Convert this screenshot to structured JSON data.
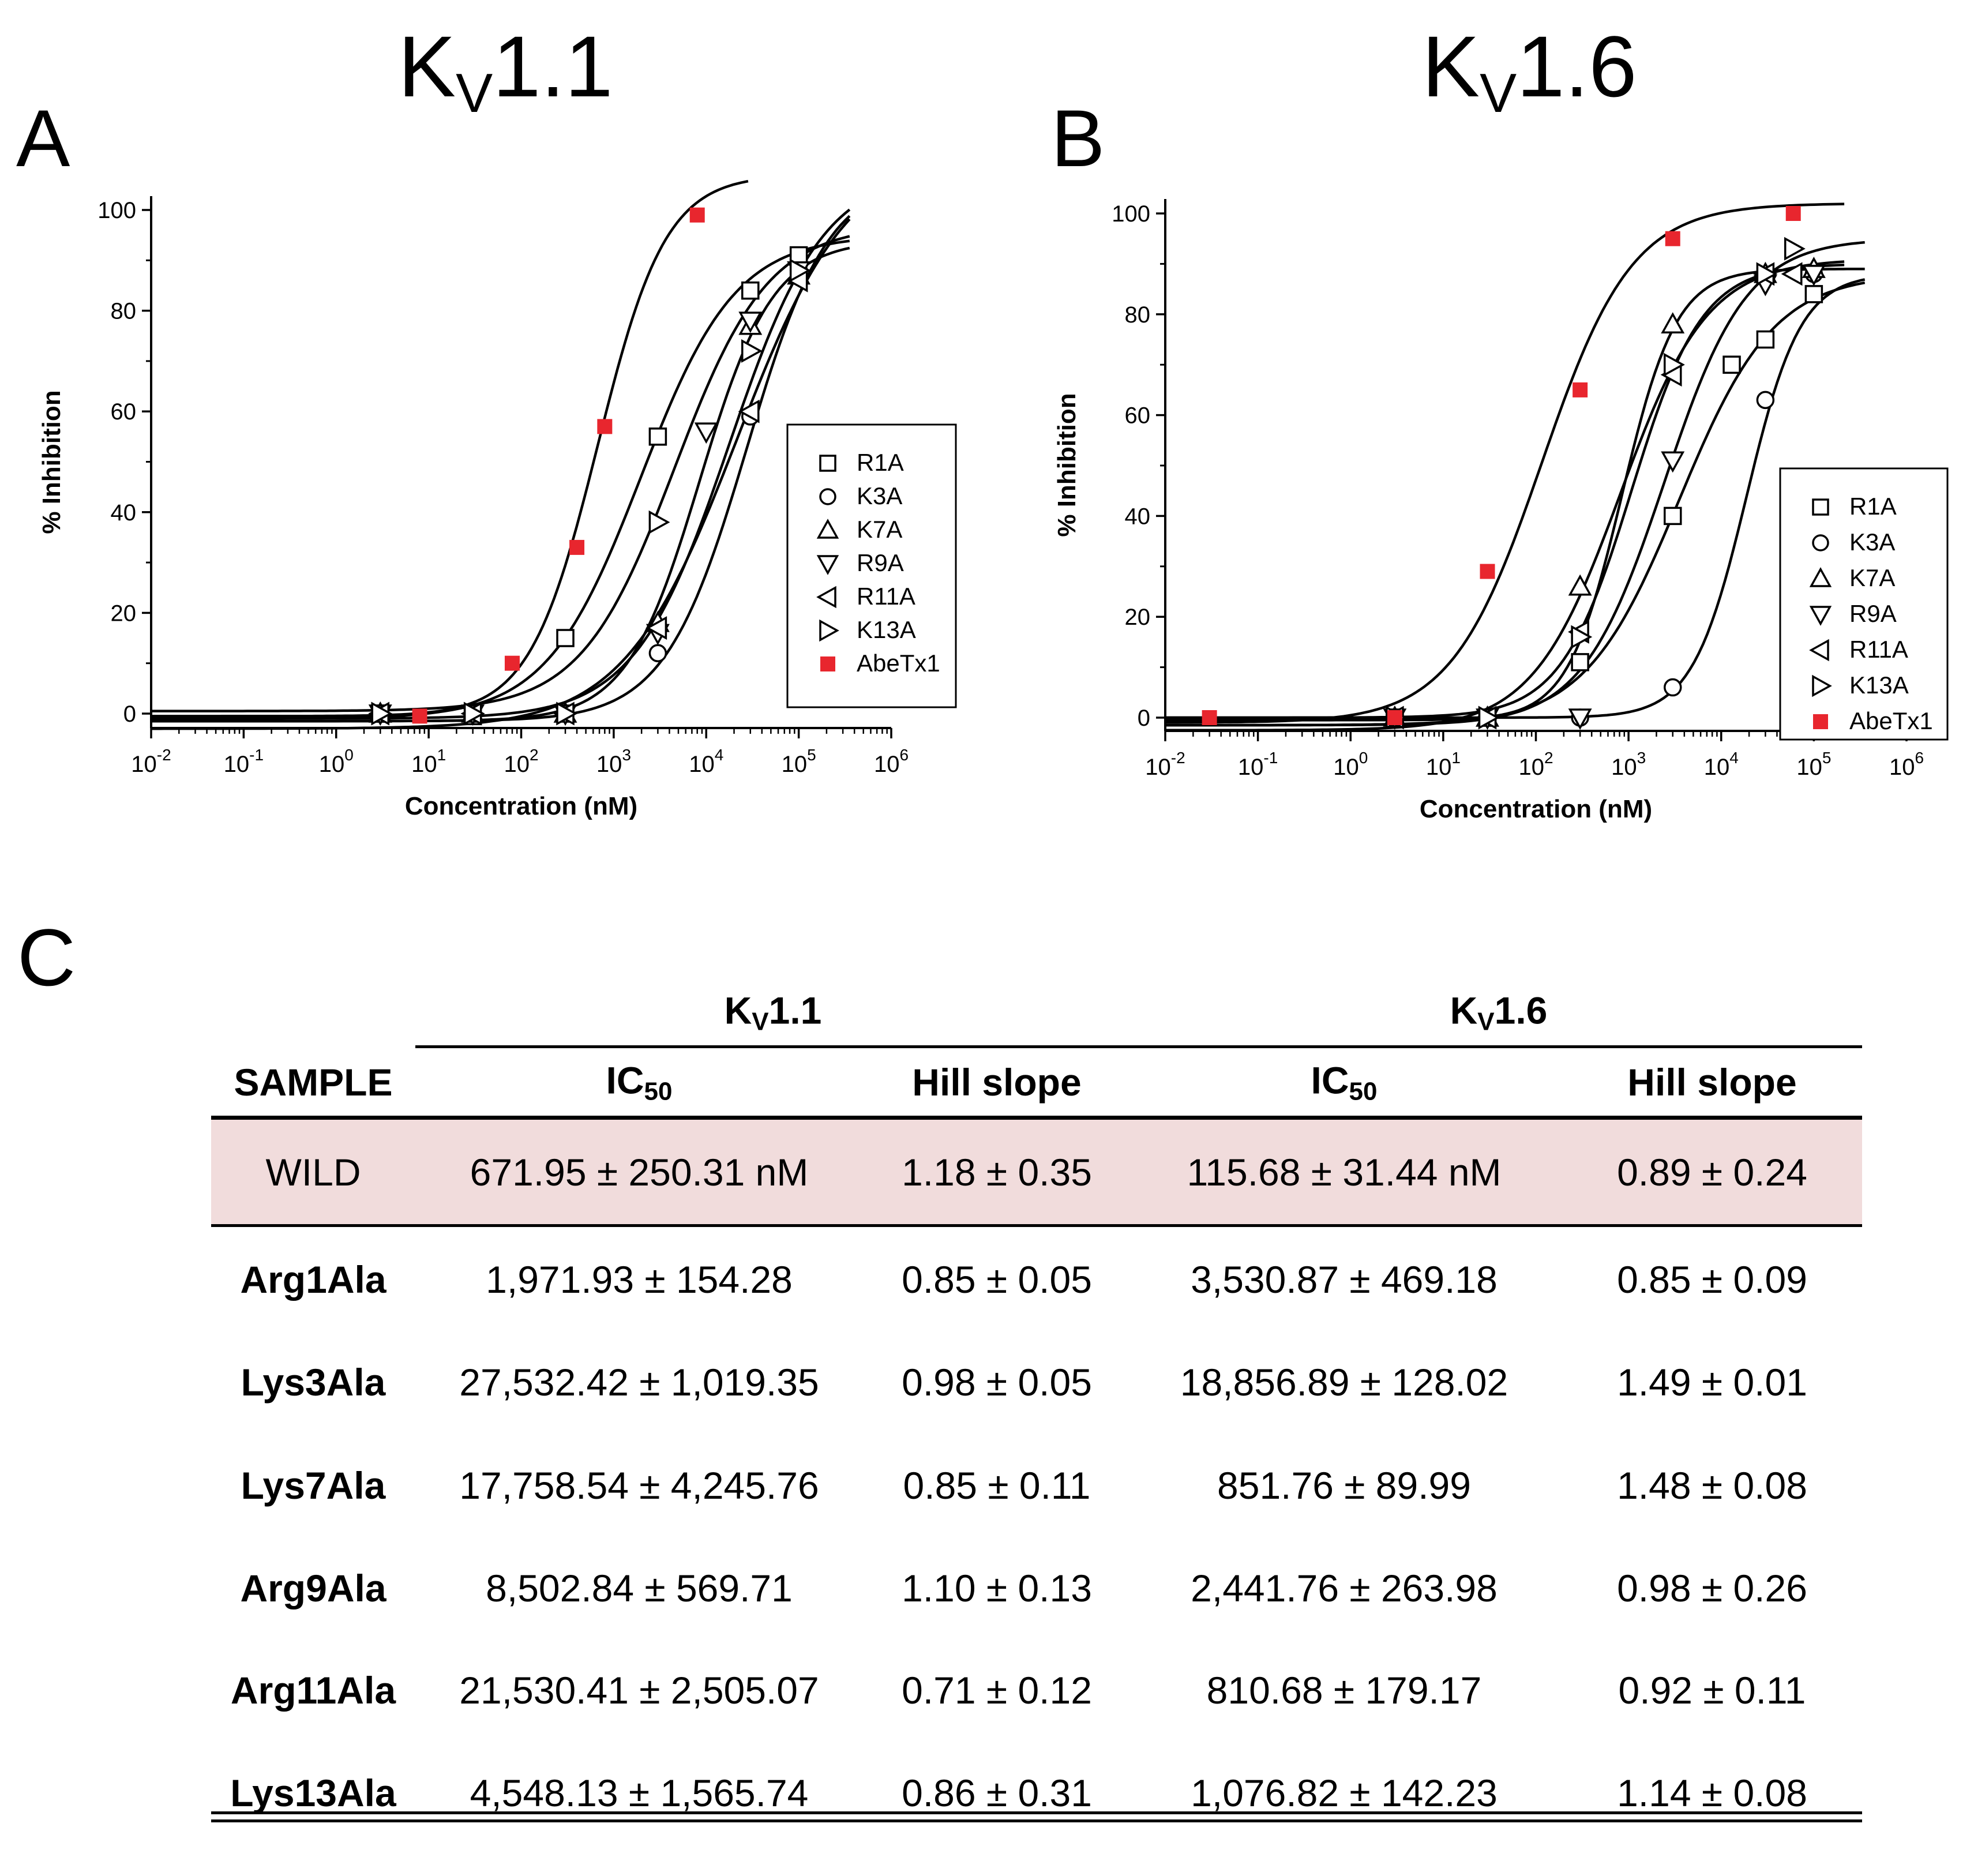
{
  "panel_a": {
    "letter": "A",
    "title_main": "K",
    "title_sub": "V",
    "title_tail": "1.1"
  },
  "panel_b": {
    "letter": "B",
    "title_main": "K",
    "title_sub": "V",
    "title_tail": "1.6"
  },
  "panel_c": {
    "letter": "C"
  },
  "colors": {
    "red": "#e8262e",
    "wild_band": "#f1dcdc",
    "line": "#000000"
  },
  "chart_data": [
    {
      "type": "scatter",
      "title": "Kv1.1",
      "xlabel": "Concentration (nM)",
      "ylabel": "% Inhibition",
      "xscale": "log",
      "xlim": [
        0.01,
        1000000
      ],
      "ylim": [
        -5,
        105
      ],
      "x_tick_labels": [
        "10-2",
        "10-1",
        "100",
        "101",
        "102",
        "103",
        "104",
        "105",
        "106"
      ],
      "y_ticks": [
        0,
        20,
        40,
        60,
        80,
        100
      ],
      "legend": {
        "placement": "right",
        "entries": [
          "R1A",
          "K3A",
          "K7A",
          "R9A",
          "R11A",
          "K13A",
          "AbeTx1"
        ]
      },
      "series": [
        {
          "name": "R1A",
          "marker": "square",
          "x": [
            3,
            30,
            300,
            3000,
            30000,
            100000
          ],
          "y": [
            0,
            -0.5,
            15,
            55,
            84,
            91
          ],
          "ic50": 1971.93,
          "hill": 0.85,
          "top": 95,
          "bottom": -1
        },
        {
          "name": "K3A",
          "marker": "circle",
          "x": [
            3,
            30,
            300,
            3000,
            30000,
            100000
          ],
          "y": [
            0,
            0,
            0,
            12,
            59,
            88
          ],
          "ic50": 27532.42,
          "hill": 0.98,
          "top": 107,
          "bottom": -1.5
        },
        {
          "name": "K7A",
          "marker": "triangle-up",
          "x": [
            3,
            30,
            300,
            3000,
            30000,
            100000
          ],
          "y": [
            0,
            0,
            0,
            18,
            77,
            87
          ],
          "ic50": 17758.54,
          "hill": 0.85,
          "top": 108,
          "bottom": -1
        },
        {
          "name": "R9A",
          "marker": "triangle-down",
          "x": [
            3,
            30,
            300,
            3000,
            10000,
            30000,
            100000
          ],
          "y": [
            0,
            0,
            0,
            16,
            56,
            78,
            88
          ],
          "ic50": 8502.84,
          "hill": 1.1,
          "top": 94,
          "bottom": -1.5
        },
        {
          "name": "R11A",
          "marker": "triangle-left",
          "x": [
            3,
            30,
            300,
            3000,
            30000,
            100000
          ],
          "y": [
            0,
            0,
            0,
            17,
            60,
            86
          ],
          "ic50": 21530.41,
          "hill": 0.71,
          "top": 112,
          "bottom": -3
        },
        {
          "name": "K13A",
          "marker": "triangle-right",
          "x": [
            3,
            30,
            300,
            3000,
            30000,
            100000
          ],
          "y": [
            0,
            0,
            0,
            38,
            72,
            88
          ],
          "ic50": 4548.13,
          "hill": 0.86,
          "top": 97,
          "bottom": 0.5
        },
        {
          "name": "AbeTx1",
          "marker": "filled-square",
          "x": [
            8,
            80,
            400,
            800,
            8000
          ],
          "y": [
            -0.5,
            10,
            33,
            57,
            99
          ],
          "ic50": 671.95,
          "hill": 1.18,
          "top": 107,
          "bottom": -0.5
        }
      ]
    },
    {
      "type": "scatter",
      "title": "Kv1.6",
      "xlabel": "Concentration (nM)",
      "ylabel": "% Inhibition",
      "xscale": "log",
      "xlim": [
        0.01,
        1000000
      ],
      "ylim": [
        -5,
        105
      ],
      "x_tick_labels": [
        "10-2",
        "10-1",
        "100",
        "101",
        "102",
        "103",
        "104",
        "105",
        "106"
      ],
      "y_ticks": [
        0,
        20,
        40,
        60,
        80,
        100
      ],
      "legend": {
        "placement": "right",
        "entries": [
          "R1A",
          "K3A",
          "K7A",
          "R9A",
          "R11A",
          "K13A",
          "AbeTx1"
        ]
      },
      "series": [
        {
          "name": "R1A",
          "marker": "square",
          "x": [
            3,
            30,
            300,
            3000,
            13000,
            30000,
            100000
          ],
          "y": [
            0,
            0,
            11,
            40,
            70,
            75,
            84
          ],
          "ic50": 3530.87,
          "hill": 0.85,
          "top": 88,
          "bottom": -1.5
        },
        {
          "name": "K3A",
          "marker": "circle",
          "x": [
            3,
            30,
            300,
            3000,
            30000,
            100000
          ],
          "y": [
            0,
            0,
            0,
            6,
            63,
            88
          ],
          "ic50": 18856.89,
          "hill": 1.49,
          "top": 88,
          "bottom": 0
        },
        {
          "name": "K7A",
          "marker": "triangle-up",
          "x": [
            3,
            30,
            300,
            3000,
            30000,
            100000
          ],
          "y": [
            0,
            0,
            26,
            78,
            88,
            89
          ],
          "ic50": 851.76,
          "hill": 1.48,
          "top": 89,
          "bottom": -0.5
        },
        {
          "name": "R9A",
          "marker": "triangle-down",
          "x": [
            3,
            30,
            300,
            3000,
            30000,
            100000
          ],
          "y": [
            0,
            0,
            0,
            51,
            86,
            88
          ],
          "ic50": 2441.76,
          "hill": 0.98,
          "top": 95,
          "bottom": -1.5
        },
        {
          "name": "R11A",
          "marker": "triangle-left",
          "x": [
            3,
            30,
            300,
            3000,
            30000,
            60000
          ],
          "y": [
            0,
            0,
            17,
            68,
            88,
            88
          ],
          "ic50": 810.68,
          "hill": 0.92,
          "top": 91,
          "bottom": -2.5
        },
        {
          "name": "K13A",
          "marker": "triangle-right",
          "x": [
            3,
            30,
            300,
            3000,
            30000,
            60000
          ],
          "y": [
            0,
            0,
            16,
            70,
            88,
            93
          ],
          "ic50": 1076.82,
          "hill": 1.14,
          "top": 90,
          "bottom": 0
        },
        {
          "name": "AbeTx1",
          "marker": "filled-square",
          "x": [
            0.03,
            3,
            30,
            300,
            3000,
            60000
          ],
          "y": [
            0,
            0,
            29,
            65,
            95,
            100
          ],
          "ic50": 115.68,
          "hill": 0.89,
          "top": 102,
          "bottom": -1
        }
      ]
    }
  ],
  "table": {
    "group_kv11": {
      "main": "K",
      "sub": "V",
      "tail": "1.1"
    },
    "group_kv16": {
      "main": "K",
      "sub": "V",
      "tail": "1.6"
    },
    "headers": {
      "sample": "SAMPLE",
      "ic50_main": "IC",
      "ic50_sub": "50",
      "hill": "Hill slope"
    },
    "rows": [
      {
        "sample": "WILD",
        "kv11_ic50": "671.95 ± 250.31 nM",
        "kv11_hill": "1.18 ± 0.35",
        "kv16_ic50": "115.68 ± 31.44 nM",
        "kv16_hill": "0.89 ± 0.24"
      },
      {
        "sample": "Arg1Ala",
        "kv11_ic50": "1,971.93 ± 154.28",
        "kv11_hill": "0.85 ± 0.05",
        "kv16_ic50": "3,530.87 ± 469.18",
        "kv16_hill": "0.85 ± 0.09"
      },
      {
        "sample": "Lys3Ala",
        "kv11_ic50": "27,532.42 ± 1,019.35",
        "kv11_hill": "0.98 ± 0.05",
        "kv16_ic50": "18,856.89 ± 128.02",
        "kv16_hill": "1.49 ± 0.01"
      },
      {
        "sample": "Lys7Ala",
        "kv11_ic50": "17,758.54 ± 4,245.76",
        "kv11_hill": "0.85 ± 0.11",
        "kv16_ic50": "851.76 ± 89.99",
        "kv16_hill": "1.48 ± 0.08"
      },
      {
        "sample": "Arg9Ala",
        "kv11_ic50": "8,502.84 ± 569.71",
        "kv11_hill": "1.10 ± 0.13",
        "kv16_ic50": "2,441.76 ± 263.98",
        "kv16_hill": "0.98 ± 0.26"
      },
      {
        "sample": "Arg11Ala",
        "kv11_ic50": "21,530.41 ± 2,505.07",
        "kv11_hill": "0.71 ± 0.12",
        "kv16_ic50": "810.68 ± 179.17",
        "kv16_hill": "0.92 ± 0.11"
      },
      {
        "sample": "Lys13Ala",
        "kv11_ic50": "4,548.13 ± 1,565.74",
        "kv11_hill": "0.86 ± 0.31",
        "kv16_ic50": "1,076.82 ± 142.23",
        "kv16_hill": "1.14 ± 0.08"
      }
    ]
  }
}
